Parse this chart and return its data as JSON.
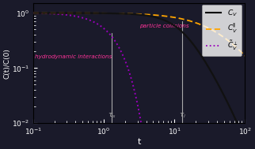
{
  "title": "",
  "xlabel": "t",
  "ylabel": "C(t)/C(0)",
  "xlim": [
    0.1,
    100
  ],
  "ylim": [
    0.01,
    1.5
  ],
  "tau_s": 1.3,
  "tau_l": 13.0,
  "annotation_hydro": "hydrodynamic interactions",
  "annotation_particle": "particle collisions",
  "cv_color": "#111111",
  "cv_par_color": "#FFA500",
  "cv_perp_color": "#9900BB",
  "bg_color": "#1a1a2e",
  "plot_bg": "#0d0d1a"
}
